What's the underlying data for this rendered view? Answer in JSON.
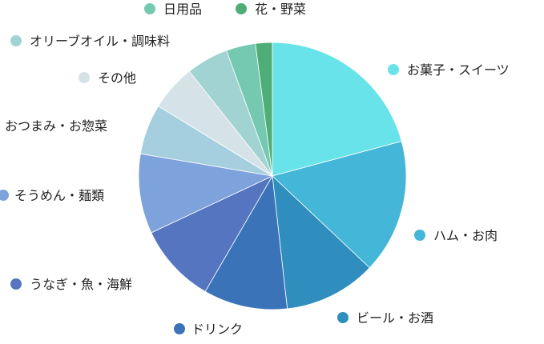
{
  "chart_data": {
    "type": "pie",
    "legend": "labels-around-pie",
    "series": [
      {
        "label": "お菓子・スイーツ",
        "value": 20.5,
        "color": "#69E3EA"
      },
      {
        "label": "ハム・お肉",
        "value": 16.0,
        "color": "#44B6D8"
      },
      {
        "label": "ビール・お酒",
        "value": 11.0,
        "color": "#2F8EBD"
      },
      {
        "label": "ドリンク",
        "value": 10.0,
        "color": "#3B73B9"
      },
      {
        "label": "うなぎ・魚・海鮮",
        "value": 9.5,
        "color": "#5575C0"
      },
      {
        "label": "そうめん・麺類",
        "value": 9.5,
        "color": "#7EA2DC"
      },
      {
        "label": "おつまみ・お惣菜",
        "value": 6.0,
        "color": "#A5CFDE"
      },
      {
        "label": "その他",
        "value": 5.5,
        "color": "#D5E3E8"
      },
      {
        "label": "オリーブオイル・調味料",
        "value": 5.0,
        "color": "#A0D3D2"
      },
      {
        "label": "日用品",
        "value": 3.5,
        "color": "#76C9B1"
      },
      {
        "label": "花・野菜",
        "value": 2.0,
        "color": "#4FAE77"
      }
    ]
  }
}
